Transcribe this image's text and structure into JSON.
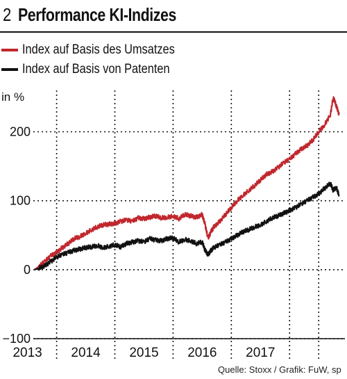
{
  "header": {
    "number": "2",
    "title": "Performance KI-Indizes"
  },
  "legend": [
    {
      "label": "Index auf Basis des Umsatzes",
      "color": "#c0272d"
    },
    {
      "label": "Index auf Basis von Patenten",
      "color": "#111111"
    }
  ],
  "source": "Quelle: Stoxx / Grafik: FuW, sp",
  "chart_data": {
    "type": "line",
    "title": "Performance KI-Indizes",
    "ylabel": "in %",
    "ylim": [
      -100,
      260
    ],
    "yticks": [
      -100,
      0,
      100,
      200
    ],
    "ytick_labels": [
      "−100",
      "0",
      "100",
      "200"
    ],
    "xlim": [
      2012.6,
      2017.95
    ],
    "xtick_labels": [
      "2013",
      "2014",
      "2015",
      "2016",
      "2017"
    ],
    "x_dividers": [
      2013.0,
      2014.0,
      2015.0,
      2016.0,
      2017.0,
      2017.5
    ],
    "grid": true,
    "series": [
      {
        "name": "Index auf Basis des Umsatzes",
        "color": "#c0272d",
        "x": [
          2012.62,
          2012.7,
          2012.8,
          2012.9,
          2013.0,
          2013.1,
          2013.2,
          2013.3,
          2013.4,
          2013.5,
          2013.6,
          2013.7,
          2013.8,
          2013.9,
          2014.0,
          2014.1,
          2014.2,
          2014.3,
          2014.4,
          2014.5,
          2014.6,
          2014.7,
          2014.8,
          2014.9,
          2015.0,
          2015.1,
          2015.2,
          2015.3,
          2015.4,
          2015.5,
          2015.55,
          2015.6,
          2015.65,
          2015.7,
          2015.8,
          2015.9,
          2016.0,
          2016.1,
          2016.2,
          2016.3,
          2016.4,
          2016.5,
          2016.6,
          2016.7,
          2016.8,
          2016.9,
          2017.0,
          2017.1,
          2017.2,
          2017.3,
          2017.4,
          2017.5,
          2017.6,
          2017.7,
          2017.75,
          2017.8,
          2017.85
        ],
        "values": [
          0,
          5,
          12,
          20,
          25,
          32,
          38,
          45,
          48,
          53,
          58,
          62,
          65,
          66,
          67,
          70,
          72,
          70,
          75,
          74,
          76,
          78,
          75,
          76,
          78,
          74,
          80,
          78,
          76,
          80,
          65,
          45,
          55,
          62,
          70,
          80,
          90,
          100,
          108,
          115,
          122,
          130,
          138,
          142,
          148,
          155,
          160,
          168,
          175,
          180,
          188,
          200,
          210,
          225,
          250,
          238,
          225
        ]
      },
      {
        "name": "Index auf Basis von Patenten",
        "color": "#111111",
        "x": [
          2012.62,
          2012.7,
          2012.8,
          2012.9,
          2013.0,
          2013.1,
          2013.2,
          2013.3,
          2013.4,
          2013.5,
          2013.6,
          2013.7,
          2013.8,
          2013.9,
          2014.0,
          2014.1,
          2014.2,
          2014.3,
          2014.4,
          2014.5,
          2014.6,
          2014.7,
          2014.8,
          2014.9,
          2015.0,
          2015.1,
          2015.2,
          2015.3,
          2015.4,
          2015.5,
          2015.55,
          2015.6,
          2015.65,
          2015.7,
          2015.8,
          2015.9,
          2016.0,
          2016.1,
          2016.2,
          2016.3,
          2016.4,
          2016.5,
          2016.6,
          2016.7,
          2016.8,
          2016.9,
          2017.0,
          2017.1,
          2017.2,
          2017.3,
          2017.4,
          2017.5,
          2017.6,
          2017.7,
          2017.75,
          2017.8,
          2017.85
        ],
        "values": [
          0,
          2,
          6,
          12,
          18,
          22,
          25,
          28,
          30,
          32,
          33,
          35,
          32,
          34,
          36,
          33,
          38,
          40,
          42,
          40,
          45,
          43,
          42,
          45,
          46,
          40,
          44,
          42,
          38,
          40,
          28,
          22,
          28,
          32,
          36,
          40,
          45,
          50,
          55,
          58,
          62,
          65,
          70,
          75,
          78,
          82,
          86,
          90,
          95,
          100,
          105,
          110,
          118,
          125,
          115,
          120,
          108
        ]
      }
    ]
  }
}
